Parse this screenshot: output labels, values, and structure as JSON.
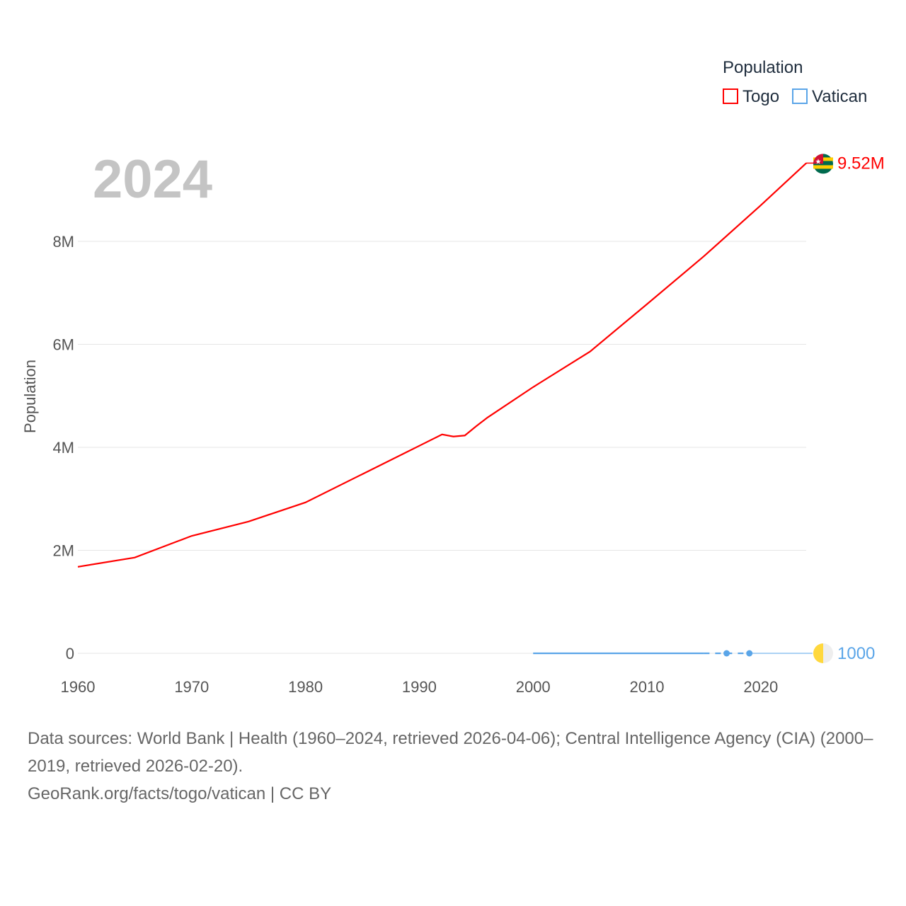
{
  "chart_data": {
    "type": "line",
    "title": "",
    "big_year": "2024",
    "xlabel": "",
    "ylabel": "Population",
    "xlim": [
      1960,
      2024
    ],
    "ylim": [
      0,
      9520000
    ],
    "x_ticks": [
      "1960",
      "1970",
      "1980",
      "1990",
      "2000",
      "2010",
      "2020"
    ],
    "y_ticks": [
      {
        "v": 0,
        "label": "0"
      },
      {
        "v": 2000000,
        "label": "2M"
      },
      {
        "v": 4000000,
        "label": "4M"
      },
      {
        "v": 6000000,
        "label": "6M"
      },
      {
        "v": 8000000,
        "label": "8M"
      }
    ],
    "legend_title": "Population",
    "legend_position": "top-right",
    "series": [
      {
        "name": "Togo",
        "color": "#ff0000",
        "end_label": "9.52M",
        "x": [
          1960,
          1965,
          1970,
          1975,
          1980,
          1985,
          1990,
          1992,
          1993,
          1994,
          1995,
          1996,
          2000,
          2005,
          2010,
          2015,
          2020,
          2024
        ],
        "y": [
          1680000,
          1860000,
          2280000,
          2560000,
          2930000,
          3480000,
          4030000,
          4250000,
          4210000,
          4230000,
          4410000,
          4580000,
          5170000,
          5860000,
          6780000,
          7710000,
          8700000,
          9520000
        ]
      },
      {
        "name": "Vatican",
        "color": "#5aa5e8",
        "end_label": "1000",
        "x": [
          2000,
          2015,
          2017,
          2019,
          2024
        ],
        "y": [
          900,
          900,
          1000,
          1000,
          1000
        ],
        "points": [
          2017,
          2019
        ]
      }
    ]
  },
  "footer": {
    "line1": "Data sources: World Bank | Health (1960–2024, retrieved 2026-04-06); Central Intelligence Agency (CIA) (2000–2019, retrieved 2026-02-20).",
    "line2": "GeoRank.org/facts/togo/vatican | CC BY"
  }
}
